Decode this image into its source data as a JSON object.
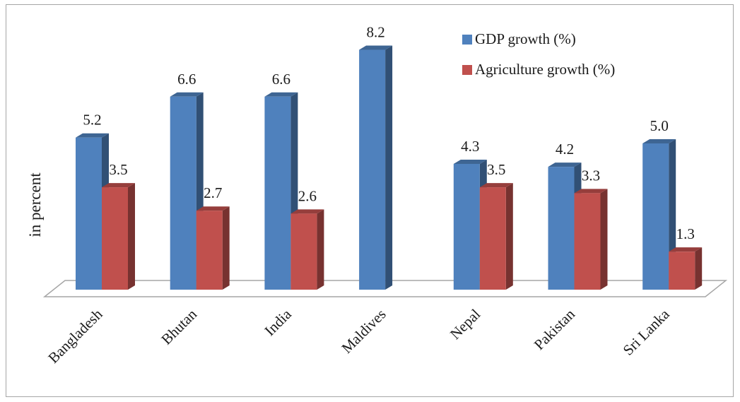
{
  "chart_data": {
    "type": "bar",
    "categories": [
      "Bangladesh",
      "Bhutan",
      "India",
      "Maldives",
      "Nepal",
      "Pakistan",
      "Sri Lanka"
    ],
    "series": [
      {
        "name": "GDP growth (%)",
        "values": [
          5.2,
          6.6,
          6.6,
          8.2,
          4.3,
          4.2,
          5.0
        ],
        "labels": [
          "5.2",
          "6.6",
          "6.6",
          "8.2",
          "4.3",
          "4.2",
          "5.0"
        ],
        "color": "#4f81bd"
      },
      {
        "name": "Agriculture growth (%)",
        "values": [
          3.5,
          2.7,
          2.6,
          null,
          3.5,
          3.3,
          1.3
        ],
        "labels": [
          "3.5",
          "2.7",
          "2.6",
          "",
          "3.5",
          "3.3",
          "1.3"
        ],
        "color": "#c0504d"
      }
    ],
    "ylabel": "in percent",
    "ylim": [
      0,
      9
    ],
    "grid": false,
    "legend": "top-right",
    "style": "3d-clustered-column"
  }
}
